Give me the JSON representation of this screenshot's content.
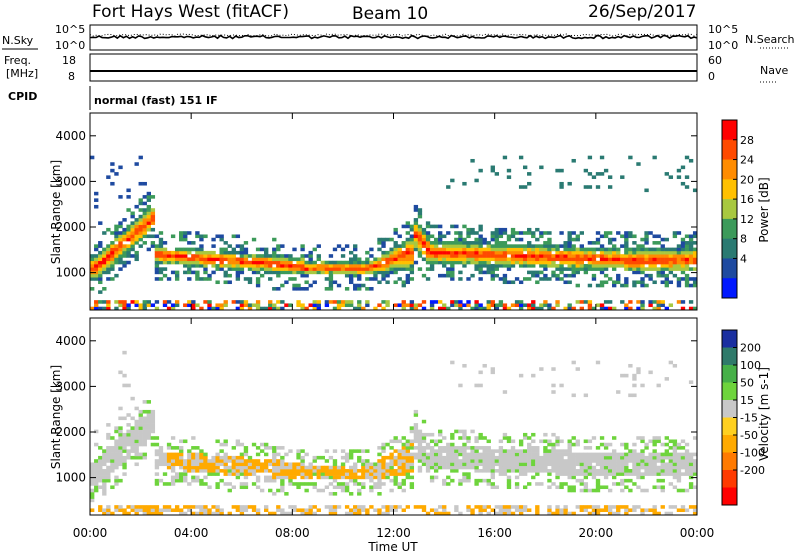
{
  "header": {
    "title": "Fort Hays West (fitACF)",
    "beam": "Beam 10",
    "date": "26/Sep/2017"
  },
  "noise_panel": {
    "left_label": "N.Sky",
    "right_label": "N.Search",
    "left_ticks": [
      "10^5",
      "10^0"
    ],
    "right_ticks": [
      "10^5",
      "10^0"
    ]
  },
  "freq_panel": {
    "left_label_1": "Freq.",
    "left_label_2": "[MHz]",
    "right_label": "Nave",
    "left_ticks": [
      "18",
      "8"
    ],
    "right_ticks": [
      "60",
      "0"
    ]
  },
  "cpid": {
    "label": "CPID",
    "value": "normal (fast) 151 IF"
  },
  "x_axis": {
    "label": "Time UT",
    "ticks": [
      "00:00",
      "04:00",
      "08:00",
      "12:00",
      "16:00",
      "20:00",
      "00:00"
    ]
  },
  "power_colorbar": {
    "label": "Power [dB]",
    "ticks": [
      "28",
      "24",
      "20",
      "16",
      "12",
      "8",
      "4"
    ],
    "colors": [
      "#ff0000",
      "#ff4a00",
      "#ff8c00",
      "#ffc000",
      "#a8c840",
      "#3c9a5a",
      "#2a7a72",
      "#1e4aa0",
      "#0018ff"
    ]
  },
  "velocity_colorbar": {
    "label": "Velocity [m s-1]",
    "ticks": [
      "200",
      "100",
      "50",
      "15",
      "-15",
      "-50",
      "-100",
      "-200"
    ],
    "colors": [
      "#1a2fa0",
      "#2f7a6a",
      "#46b048",
      "#6ed43c",
      "#c8c8c8",
      "#ffd020",
      "#ffaa00",
      "#ff7a00",
      "#ff3a00",
      "#ff0000"
    ]
  },
  "chart_data": [
    {
      "type": "heatmap",
      "title": "Power",
      "xlabel": "Time UT",
      "ylabel": "Slant Range [km]",
      "y_ticks": [
        1000,
        2000,
        3000,
        4000
      ],
      "x_ticks": [
        "00:00",
        "04:00",
        "08:00",
        "12:00",
        "16:00",
        "20:00",
        "00:00"
      ],
      "xlim_hours": [
        0,
        24
      ],
      "ylim_km": [
        180,
        4500
      ],
      "colorbar_label": "Power [dB]",
      "colorbar_range": [
        0,
        30
      ]
    },
    {
      "type": "heatmap",
      "title": "Velocity",
      "xlabel": "Time UT",
      "ylabel": "Slant Range [km]",
      "y_ticks": [
        1000,
        2000,
        3000,
        4000
      ],
      "x_ticks": [
        "00:00",
        "04:00",
        "08:00",
        "12:00",
        "16:00",
        "20:00",
        "00:00"
      ],
      "xlim_hours": [
        0,
        24
      ],
      "ylim_km": [
        180,
        4500
      ],
      "colorbar_label": "Velocity [m s-1]",
      "colorbar_range": [
        -200,
        200
      ]
    }
  ]
}
